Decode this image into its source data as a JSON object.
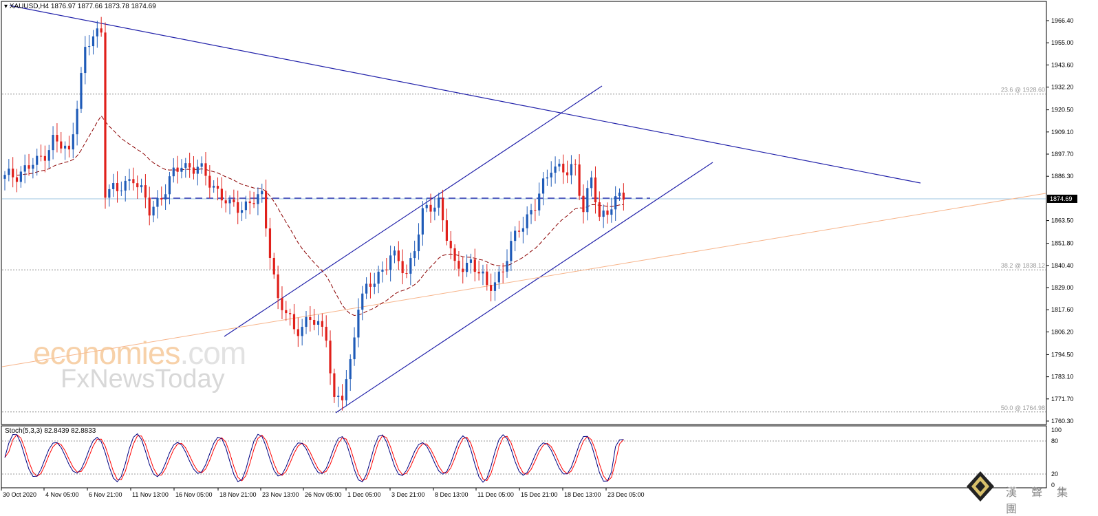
{
  "header": {
    "symbol": "XAUUSD,H4",
    "ohlc": "1876.97 1877.66 1873.78 1874.69"
  },
  "stoch_header": "Stoch(5,3,3) 82.8439 82.8833",
  "watermark": {
    "line1_a": "economies",
    "line1_b": ".com",
    "line2": "FxNewsToday"
  },
  "logo_text": "漢 聲 集 團",
  "colors": {
    "bull": "#1f5bb8",
    "bear": "#e0201b",
    "ma": "#8b0000",
    "channel": "#2222aa",
    "fib": "#8a8a8a",
    "orange_line": "#f7b48a",
    "price_line": "#9ec4e0",
    "stoch_main": "#000080",
    "stoch_signal": "#ff0000"
  },
  "chart_data": {
    "type": "candlestick",
    "timeframe": "H4",
    "y_ticks": [
      "1966.40",
      "1955.00",
      "1943.60",
      "1932.20",
      "1920.50",
      "1909.10",
      "1897.70",
      "1886.30",
      "1874.69",
      "1863.50",
      "1851.80",
      "1840.40",
      "1829.00",
      "1817.60",
      "1806.20",
      "1794.50",
      "1783.10",
      "1771.70",
      "1760.30"
    ],
    "current_price": "1874.69",
    "fib_levels": [
      {
        "label": "23.6 @ 1928.60",
        "price": 1928.6
      },
      {
        "label": "38.2 @ 1838.12",
        "price": 1838.12
      },
      {
        "label": "50.0 @ 1764.98",
        "price": 1764.98
      }
    ],
    "x_ticks": [
      "30 Oct 2020",
      "4 Nov 05:00",
      "6 Nov 21:00",
      "11 Nov 13:00",
      "16 Nov 05:00",
      "18 Nov 21:00",
      "23 Nov 13:00",
      "26 Nov 05:00",
      "1 Dec 05:00",
      "3 Dec 21:00",
      "8 Dec 13:00",
      "11 Dec 05:00",
      "15 Dec 21:00",
      "18 Dec 13:00",
      "23 Dec 05:00"
    ],
    "anchors": [
      [
        0,
        1885
      ],
      [
        8,
        1893
      ],
      [
        12,
        1905
      ],
      [
        16,
        1898
      ],
      [
        18,
        1925
      ],
      [
        20,
        1950
      ],
      [
        22,
        1958
      ],
      [
        24,
        1962
      ],
      [
        25,
        1880
      ],
      [
        28,
        1878
      ],
      [
        32,
        1887
      ],
      [
        36,
        1868
      ],
      [
        40,
        1880
      ],
      [
        44,
        1893
      ],
      [
        48,
        1890
      ],
      [
        52,
        1882
      ],
      [
        56,
        1870
      ],
      [
        60,
        1872
      ],
      [
        64,
        1875
      ],
      [
        68,
        1822
      ],
      [
        72,
        1808
      ],
      [
        76,
        1812
      ],
      [
        80,
        1806
      ],
      [
        82,
        1770
      ],
      [
        84,
        1772
      ],
      [
        86,
        1790
      ],
      [
        88,
        1822
      ],
      [
        92,
        1832
      ],
      [
        96,
        1846
      ],
      [
        100,
        1836
      ],
      [
        104,
        1866
      ],
      [
        108,
        1874
      ],
      [
        112,
        1838
      ],
      [
        116,
        1843
      ],
      [
        120,
        1829
      ],
      [
        124,
        1838
      ],
      [
        128,
        1861
      ],
      [
        132,
        1870
      ],
      [
        136,
        1893
      ],
      [
        140,
        1887
      ],
      [
        142,
        1892
      ],
      [
        144,
        1870
      ],
      [
        146,
        1884
      ],
      [
        148,
        1864
      ],
      [
        151,
        1873
      ],
      [
        154,
        1875
      ]
    ],
    "stoch_levels": [
      20,
      80
    ],
    "stoch_range": [
      0,
      100
    ],
    "stoch_ticks": [
      "100",
      "80",
      "20",
      "0"
    ],
    "stoch_values": {
      "main": 82.8439,
      "signal": 82.8833
    }
  }
}
